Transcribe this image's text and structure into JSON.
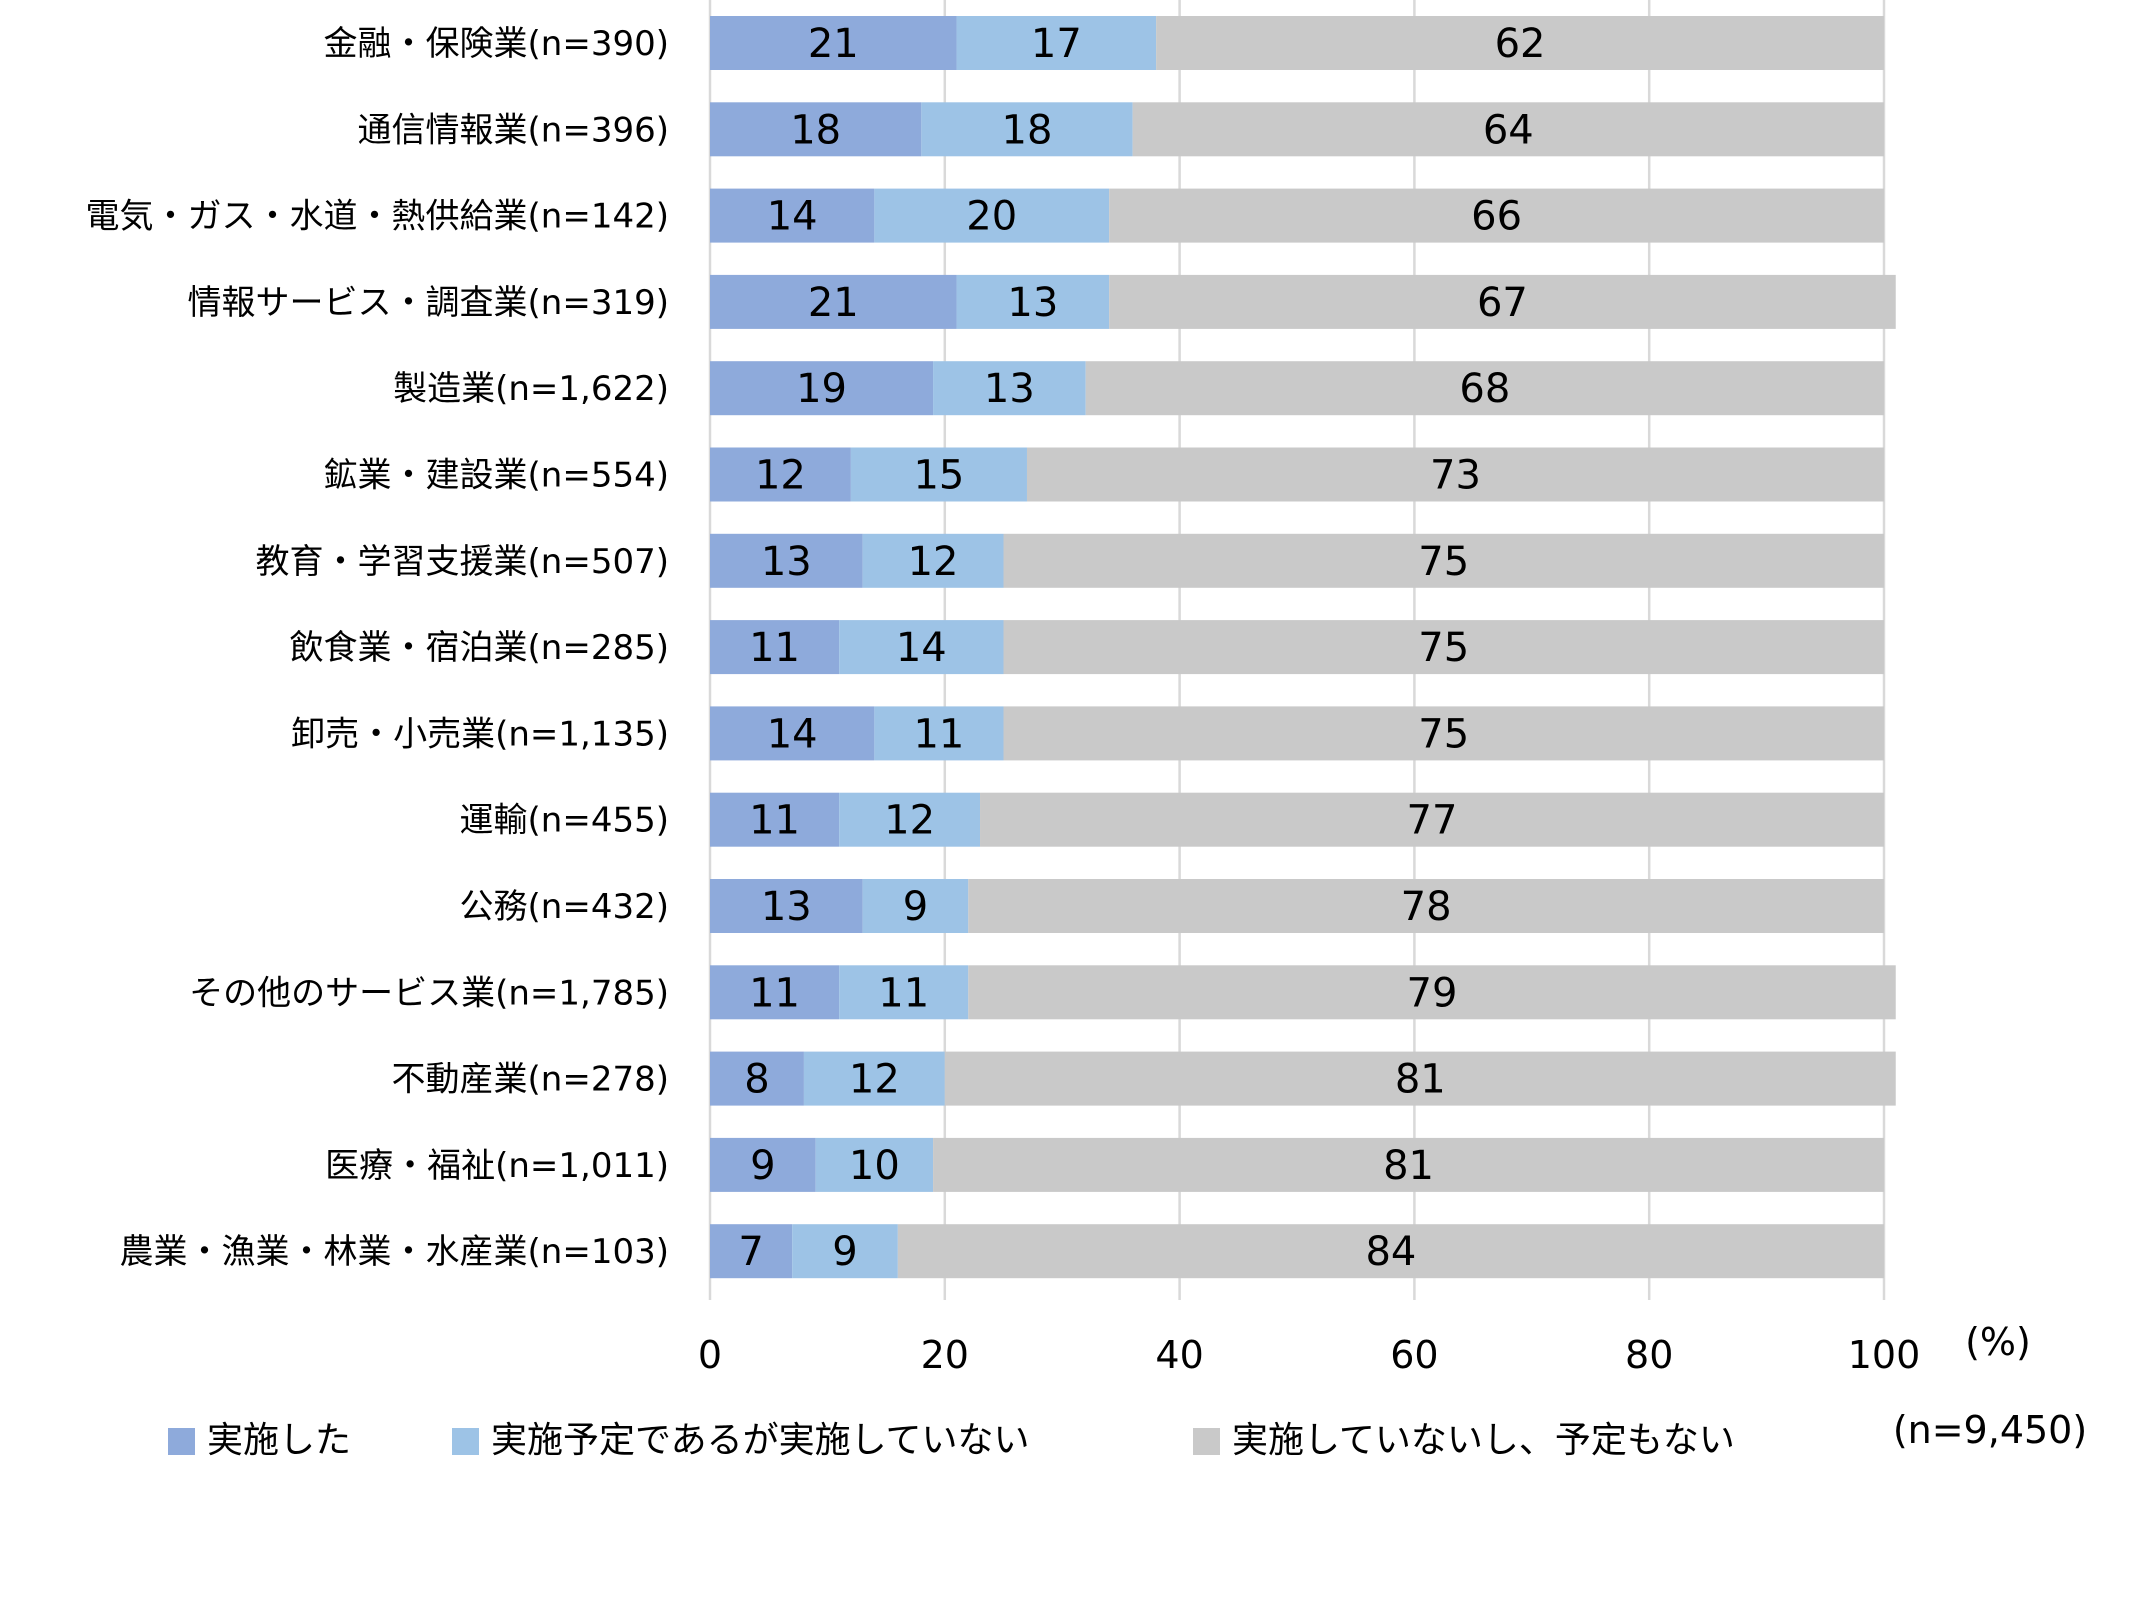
{
  "chart_data": {
    "type": "bar",
    "orientation": "horizontal",
    "stacked": true,
    "categories": [
      "金融・保険業(n=390)",
      "通信情報業(n=396)",
      "電気・ガス・水道・熱供給業(n=142)",
      "情報サービス・調査業(n=319)",
      "製造業(n=1,622)",
      "鉱業・建設業(n=554)",
      "教育・学習支援業(n=507)",
      "飲食業・宿泊業(n=285)",
      "卸売・小売業(n=1,135)",
      "運輸(n=455)",
      "公務(n=432)",
      "その他のサービス業(n=1,785)",
      "不動産業(n=278)",
      "医療・福祉(n=1,011)",
      "農業・漁業・林業・水産業(n=103)"
    ],
    "series": [
      {
        "name": "実施した",
        "color": "#8eaadb",
        "values": [
          21,
          18,
          14,
          21,
          19,
          12,
          13,
          11,
          14,
          11,
          13,
          11,
          8,
          9,
          7
        ]
      },
      {
        "name": "実施予定であるが実施していない",
        "color": "#9dc3e6",
        "values": [
          17,
          18,
          20,
          13,
          13,
          15,
          12,
          14,
          11,
          12,
          9,
          11,
          12,
          10,
          9
        ]
      },
      {
        "name": "実施していないし、予定もない",
        "color": "#c9c9c9",
        "values": [
          62,
          64,
          66,
          67,
          68,
          73,
          75,
          75,
          75,
          77,
          78,
          79,
          81,
          81,
          84
        ]
      }
    ],
    "xlim": [
      0,
      100
    ],
    "xticks": [
      "0",
      "20",
      "40",
      "60",
      "80",
      "100"
    ],
    "unit_label": "(%)",
    "note": "(n=9,450)",
    "grid": true,
    "legend_position": "bottom"
  }
}
